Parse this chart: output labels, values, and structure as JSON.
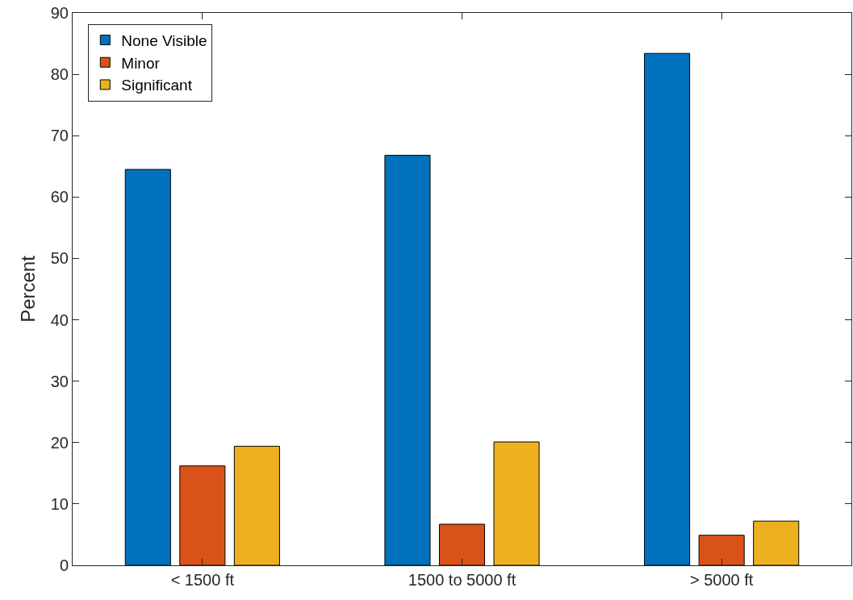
{
  "chart_data": {
    "type": "bar",
    "ylabel": "Percent",
    "categories": [
      "< 1500 ft",
      "1500 to 5000 ft",
      "> 5000 ft"
    ],
    "series": [
      {
        "name": "None Visible",
        "color": "#0072bd",
        "values": [
          64.5,
          66.8,
          83.4
        ]
      },
      {
        "name": "Minor",
        "color": "#d95319",
        "values": [
          16.2,
          6.7,
          4.9
        ]
      },
      {
        "name": "Significant",
        "color": "#edb120",
        "values": [
          19.4,
          20.1,
          7.2
        ]
      }
    ],
    "ylim": [
      0,
      90
    ],
    "yticks": [
      0,
      10,
      20,
      30,
      40,
      50,
      60,
      70,
      80,
      90
    ],
    "grid": false,
    "legend": "top left"
  }
}
